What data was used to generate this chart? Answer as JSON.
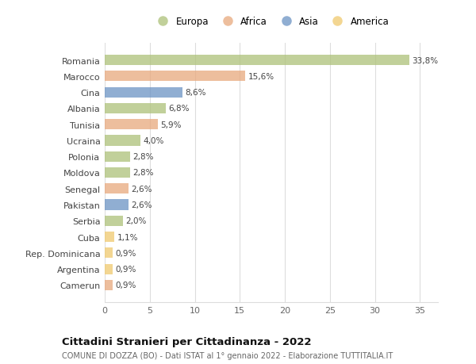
{
  "countries": [
    "Romania",
    "Marocco",
    "Cina",
    "Albania",
    "Tunisia",
    "Ucraina",
    "Polonia",
    "Moldova",
    "Senegal",
    "Pakistan",
    "Serbia",
    "Cuba",
    "Rep. Dominicana",
    "Argentina",
    "Camerun"
  ],
  "values": [
    33.8,
    15.6,
    8.6,
    6.8,
    5.9,
    4.0,
    2.8,
    2.8,
    2.6,
    2.6,
    2.0,
    1.1,
    0.9,
    0.9,
    0.9
  ],
  "labels": [
    "33,8%",
    "15,6%",
    "8,6%",
    "6,8%",
    "5,9%",
    "4,0%",
    "2,8%",
    "2,8%",
    "2,6%",
    "2,6%",
    "2,0%",
    "1,1%",
    "0,9%",
    "0,9%",
    "0,9%"
  ],
  "continents": [
    "Europa",
    "Africa",
    "Asia",
    "Europa",
    "Africa",
    "Europa",
    "Europa",
    "Europa",
    "Africa",
    "Asia",
    "Europa",
    "America",
    "America",
    "America",
    "Africa"
  ],
  "colors": {
    "Europa": "#adc178",
    "Africa": "#e8a87c",
    "Asia": "#6b93c4",
    "America": "#f0c96e"
  },
  "legend_order": [
    "Europa",
    "Africa",
    "Asia",
    "America"
  ],
  "title": "Cittadini Stranieri per Cittadinanza - 2022",
  "subtitle": "COMUNE DI DOZZA (BO) - Dati ISTAT al 1° gennaio 2022 - Elaborazione TUTTITALIA.IT",
  "xlim": [
    0,
    37
  ],
  "xticks": [
    0,
    5,
    10,
    15,
    20,
    25,
    30,
    35
  ],
  "background_color": "#ffffff",
  "bar_alpha": 0.75,
  "grid_color": "#dddddd"
}
